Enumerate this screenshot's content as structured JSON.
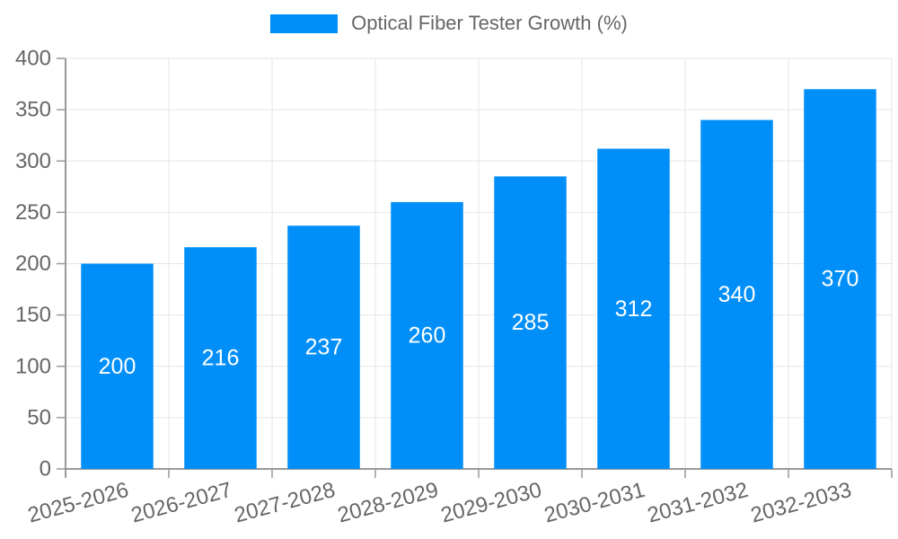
{
  "chart_data": {
    "type": "bar",
    "title": "Optical Fiber Tester Growth (%)",
    "categories": [
      "2025-2026",
      "2026-2027",
      "2027-2028",
      "2028-2029",
      "2029-2030",
      "2030-2031",
      "2031-2032",
      "2032-2033"
    ],
    "values": [
      200,
      216,
      237,
      260,
      285,
      312,
      340,
      370
    ],
    "xlabel": "",
    "ylabel": "",
    "ylim": [
      0,
      400
    ],
    "yticks": [
      0,
      50,
      100,
      150,
      200,
      250,
      300,
      350,
      400
    ],
    "grid": true,
    "legend_position": "top",
    "x_tick_rotation": -15,
    "bar_color": "#008ff8",
    "value_label_color": "#ffffff",
    "grid_color": "#e6e6e6",
    "axis_color": "#999999",
    "tick_text_color": "#666666",
    "background_color": "#ffffff"
  }
}
